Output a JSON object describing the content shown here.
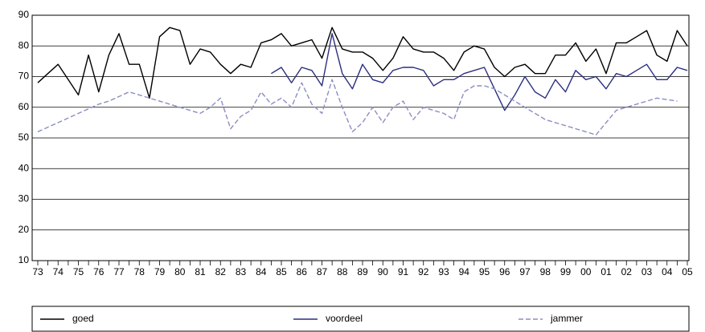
{
  "chart_data": {
    "type": "line",
    "categories": [
      "73",
      null,
      "74",
      null,
      "75",
      null,
      "76",
      null,
      "77",
      null,
      "78",
      null,
      "79",
      null,
      "80",
      null,
      "81",
      null,
      "82",
      null,
      "83",
      null,
      "84",
      null,
      "85",
      null,
      "86",
      null,
      "87",
      null,
      "88",
      null,
      "89",
      null,
      "90",
      null,
      "91",
      null,
      "92",
      null,
      "93",
      null,
      "94",
      null,
      "95",
      null,
      "96",
      null,
      "97",
      null,
      "98",
      null,
      "99",
      null,
      "00",
      null,
      "01",
      null,
      "02",
      null,
      "03",
      null,
      "04",
      null,
      "05"
    ],
    "series": [
      {
        "name": "goed",
        "color": "#000000",
        "dash": false,
        "values": [
          68,
          71,
          74,
          69,
          64,
          77,
          65,
          77,
          84,
          74,
          74,
          63,
          83,
          86,
          85,
          74,
          79,
          78,
          74,
          71,
          74,
          73,
          81,
          82,
          84,
          80,
          81,
          82,
          76,
          86,
          79,
          78,
          78,
          76,
          72,
          76,
          83,
          79,
          78,
          78,
          76,
          72,
          78,
          80,
          79,
          73,
          70,
          73,
          74,
          71,
          71,
          77,
          77,
          81,
          75,
          79,
          71,
          81,
          81,
          83,
          85,
          77,
          75,
          85,
          80
        ]
      },
      {
        "name": "voordeel",
        "color": "#2b2f80",
        "dash": false,
        "values": [
          null,
          null,
          null,
          null,
          null,
          null,
          null,
          null,
          null,
          null,
          null,
          null,
          null,
          null,
          null,
          null,
          null,
          null,
          null,
          null,
          null,
          null,
          null,
          71,
          73,
          68,
          73,
          72,
          67,
          84,
          71,
          66,
          74,
          69,
          68,
          72,
          73,
          73,
          72,
          67,
          69,
          69,
          71,
          72,
          73,
          66,
          59,
          64,
          70,
          65,
          63,
          69,
          65,
          72,
          69,
          70,
          66,
          71,
          70,
          72,
          74,
          69,
          69,
          73,
          72
        ]
      },
      {
        "name": "jammer",
        "color": "#8a8ec2",
        "dash": true,
        "values": [
          52,
          53.5,
          55,
          56.5,
          58,
          59.5,
          61,
          62,
          63.5,
          65,
          64,
          63,
          62,
          61,
          60,
          59,
          58,
          60,
          63,
          53,
          57,
          59,
          65,
          61,
          63,
          60,
          68,
          61,
          58,
          69,
          60,
          52,
          55,
          60,
          55,
          60,
          62,
          56,
          60,
          59,
          58,
          56,
          65,
          67,
          67,
          66,
          64,
          62,
          60,
          58,
          56,
          55,
          54,
          53,
          52,
          51,
          55,
          59,
          60,
          61,
          62,
          63,
          62.5,
          62,
          null
        ]
      }
    ],
    "ylim": [
      10,
      90
    ],
    "yticks": [
      10,
      20,
      30,
      40,
      50,
      60,
      70,
      80,
      90
    ],
    "grid": true
  }
}
